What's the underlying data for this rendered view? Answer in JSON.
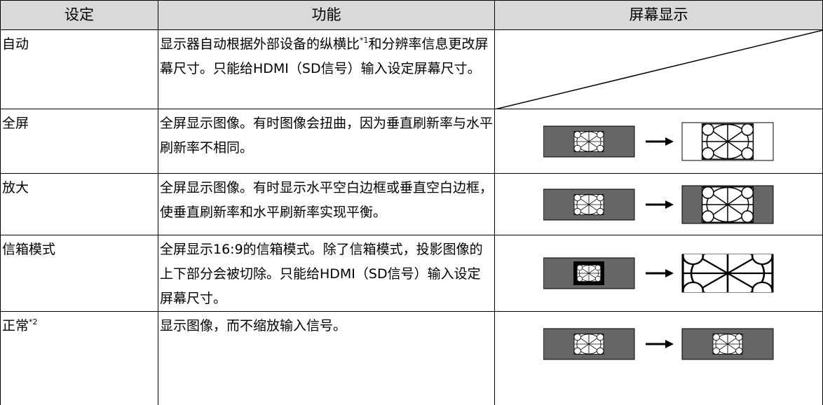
{
  "header": [
    "设定",
    "功能",
    "屏幕显示"
  ],
  "rows": [
    {
      "setting": "自动",
      "function": [
        "显示器自动根据外部设备的纵横比",
        "*1",
        "和分辨率信息更改屏幕尺寸。只能给HDMI（SD信号）输入设定屏幕尺寸。"
      ]
    },
    {
      "setting": "全屏",
      "function": "全屏显示图像。有时图像会扭曲，因为垂直刷新率与水平刷新率不相同。"
    },
    {
      "setting": "放大",
      "function": "全屏显示图像。有时显示水平空白边框或垂直空白边框，使垂直刷新率和水平刷新率实现平衡。"
    },
    {
      "setting": "信箱模式",
      "function": "全屏显示16:9的信箱模式。除了信箱模式，投影图像的上下部分会被切除。只能给HDMI（SD信号）输入设定屏幕尺寸。"
    },
    {
      "setting": [
        "正常",
        "*2"
      ],
      "function": "显示图像，而不缩放输入信号。"
    }
  ]
}
